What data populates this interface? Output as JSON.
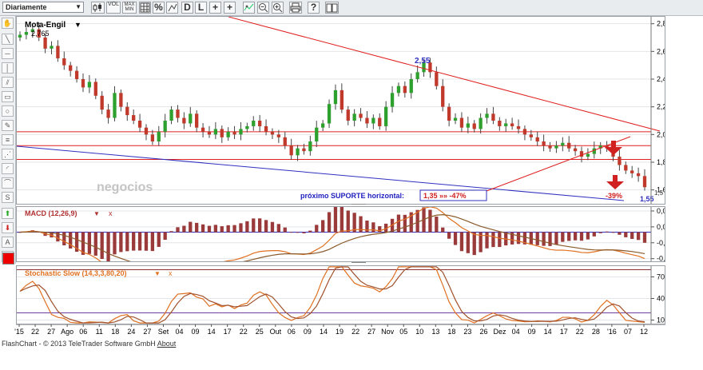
{
  "toolbar": {
    "interval": "Diariamente",
    "buttons": [
      {
        "name": "candle-type-button",
        "label": ""
      },
      {
        "name": "volume-button",
        "label": "VOL"
      },
      {
        "name": "maxmin-button",
        "label": "MAX MIN"
      },
      {
        "name": "grid-button",
        "label": ""
      },
      {
        "name": "percent-button",
        "label": "%"
      },
      {
        "name": "scale-button",
        "label": ""
      },
      {
        "name": "draw-d-button",
        "label": "D"
      },
      {
        "name": "draw-l-button",
        "label": "L"
      },
      {
        "name": "crosshair-button",
        "label": "+"
      },
      {
        "name": "indicator-button",
        "label": ""
      },
      {
        "name": "zoom-out-button",
        "label": ""
      },
      {
        "name": "zoom-in-button",
        "label": ""
      },
      {
        "name": "print-button",
        "label": ""
      },
      {
        "name": "help-button",
        "label": "?"
      },
      {
        "name": "book-button",
        "label": ""
      }
    ]
  },
  "chart": {
    "title": "Mota-Engil",
    "label_start": "2,765",
    "label_peak": "2,55",
    "annotation": "próximo SUPORTE horizontal:",
    "annotation_value": "1,35 »» -47%",
    "pct_label": "-39%",
    "end_label": "1,55",
    "end_label_small": "1,5",
    "watermark": "negocios",
    "y_ticks": [
      "2,800",
      "2,600",
      "2,400",
      "2,200",
      "2,000",
      "1,800",
      "1,600"
    ],
    "colors": {
      "up": "#2ea02e",
      "down": "#c0392b",
      "trend": "#e02020",
      "support": "#3030c0"
    }
  },
  "macd": {
    "label": "MACD (12,26,9)",
    "close": "x",
    "y_ticks": [
      "0,0800",
      "0,0200",
      "-0,0400",
      "-0,1000"
    ]
  },
  "stoch": {
    "label": "Stochastic Slow (14,3,3,80,20)",
    "close": "x",
    "y_ticks": [
      "70,0000",
      "40,0000",
      "10,0000"
    ]
  },
  "x_ticks": [
    "'15",
    "22",
    "27",
    "Ago",
    "06",
    "11",
    "18",
    "24",
    "27",
    "Set",
    "04",
    "09",
    "14",
    "17",
    "22",
    "25",
    "Out",
    "06",
    "09",
    "14",
    "19",
    "22",
    "27",
    "Nov",
    "05",
    "10",
    "13",
    "18",
    "23",
    "26",
    "Dez",
    "04",
    "09",
    "14",
    "17",
    "22",
    "28",
    "'16",
    "07",
    "12"
  ],
  "footer": {
    "text": "FlashChart - © 2013 TeleTrader Software GmbH",
    "link": "About"
  },
  "chart_data": {
    "type": "candlestick",
    "title": "Mota-Engil",
    "ylim": [
      1.5,
      2.85
    ],
    "y_ticks": [
      1.6,
      1.8,
      2.0,
      2.2,
      2.4,
      2.6,
      2.8
    ],
    "x_ticks": [
      "'15",
      "22",
      "27",
      "Ago",
      "06",
      "11",
      "18",
      "24",
      "27",
      "Set",
      "04",
      "09",
      "14",
      "17",
      "22",
      "25",
      "Out",
      "06",
      "09",
      "14",
      "19",
      "22",
      "27",
      "Nov",
      "05",
      "10",
      "13",
      "18",
      "23",
      "26",
      "Dez",
      "04",
      "09",
      "14",
      "17",
      "22",
      "28",
      "'16",
      "07",
      "12"
    ],
    "horizontal_lines": [
      2.02,
      1.92,
      1.82
    ],
    "close_series": [
      2.72,
      2.74,
      2.76,
      2.7,
      2.62,
      2.64,
      2.55,
      2.5,
      2.46,
      2.4,
      2.34,
      2.38,
      2.28,
      2.18,
      2.12,
      2.3,
      2.2,
      2.14,
      2.1,
      2.05,
      2.0,
      1.95,
      2.02,
      2.1,
      2.18,
      2.12,
      2.08,
      2.15,
      2.05,
      2.02,
      2.0,
      2.04,
      1.98,
      2.02,
      2.0,
      2.04,
      2.06,
      2.1,
      2.06,
      2.02,
      2.0,
      1.98,
      1.92,
      1.85,
      1.9,
      1.88,
      1.95,
      2.05,
      2.08,
      2.22,
      2.32,
      2.18,
      2.1,
      2.15,
      2.12,
      2.08,
      2.12,
      2.06,
      2.2,
      2.3,
      2.35,
      2.3,
      2.4,
      2.45,
      2.52,
      2.45,
      2.35,
      2.2,
      2.1,
      2.12,
      2.05,
      2.08,
      2.04,
      2.12,
      2.15,
      2.1,
      2.06,
      2.08,
      2.06,
      2.04,
      2.0,
      1.98,
      1.95,
      1.92,
      1.9,
      1.92,
      1.94,
      1.9,
      1.88,
      1.84,
      1.86,
      1.9,
      1.92,
      1.9,
      1.84,
      1.78,
      1.74,
      1.72,
      1.7,
      1.62
    ],
    "macd": {
      "ylim": [
        -0.11,
        0.095
      ],
      "y_ticks": [
        0.08,
        0.02,
        -0.04,
        -0.1
      ]
    },
    "stochastic": {
      "ylim": [
        5,
        85
      ],
      "y_ticks": [
        70,
        40,
        10
      ],
      "levels": [
        80,
        20
      ]
    }
  }
}
